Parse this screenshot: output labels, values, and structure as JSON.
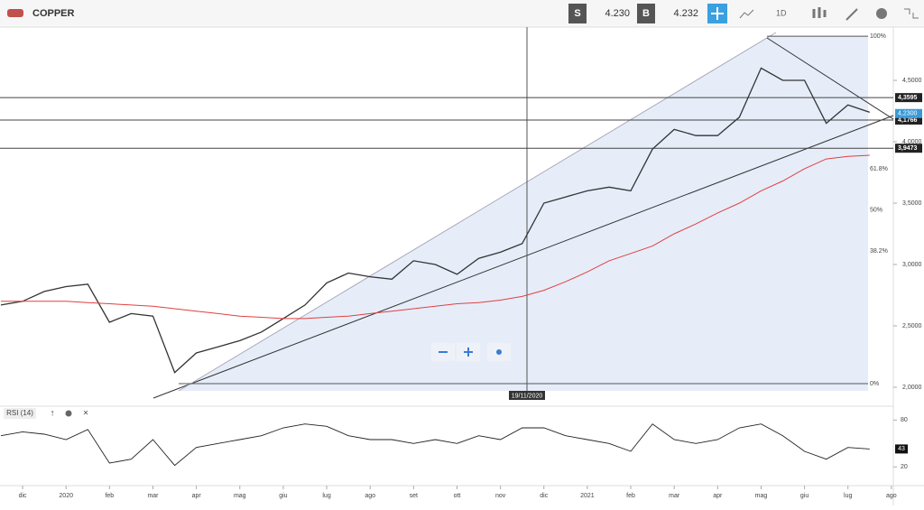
{
  "toolbar": {
    "symbol": "COPPER",
    "sell_label": "S",
    "sell": "4.230",
    "buy_label": "B",
    "buy": "4.232",
    "timeframe": "1D"
  },
  "chart_data": {
    "type": "line",
    "categories": [
      null,
      "dic",
      null,
      "2020",
      null,
      "feb",
      null,
      "mar",
      null,
      "apr",
      null,
      "mag",
      null,
      "giu",
      null,
      "lug",
      null,
      "ago",
      null,
      "set",
      null,
      "ott",
      null,
      "nov",
      null,
      "dic",
      null,
      "2021",
      null,
      "feb",
      null,
      "mar",
      null,
      "apr",
      null,
      "mag",
      null,
      "giu",
      null,
      "lug",
      null,
      "ago"
    ],
    "series": [
      {
        "name": "COPPER",
        "color": "#333333",
        "values": [
          2.67,
          2.7,
          2.78,
          2.82,
          2.84,
          2.53,
          2.6,
          2.58,
          2.12,
          2.28,
          2.33,
          2.38,
          2.45,
          2.56,
          2.67,
          2.85,
          2.93,
          2.9,
          2.88,
          3.03,
          3.0,
          2.92,
          3.05,
          3.1,
          3.17,
          3.5,
          3.55,
          3.6,
          3.63,
          3.6,
          3.94,
          4.1,
          4.05,
          4.05,
          4.2,
          4.6,
          4.5,
          4.5,
          4.15,
          4.3,
          4.24,
          null
        ]
      },
      {
        "name": "MA",
        "color": "#e0403f",
        "values": [
          2.7,
          2.7,
          2.7,
          2.7,
          2.69,
          2.68,
          2.67,
          2.66,
          2.64,
          2.62,
          2.6,
          2.58,
          2.57,
          2.56,
          2.56,
          2.57,
          2.58,
          2.6,
          2.62,
          2.64,
          2.66,
          2.68,
          2.69,
          2.71,
          2.74,
          2.79,
          2.86,
          2.94,
          3.03,
          3.09,
          3.15,
          3.25,
          3.33,
          3.42,
          3.5,
          3.6,
          3.68,
          3.78,
          3.86,
          3.88,
          3.89,
          null
        ]
      }
    ],
    "ylim": [
      1.912,
      4.934
    ],
    "yticks": [
      {
        "value": 2,
        "label": "2,0000"
      },
      {
        "value": 2.5,
        "label": "2,5000"
      },
      {
        "value": 3,
        "label": "3,0000"
      },
      {
        "value": 3.5,
        "label": "3,5000"
      },
      {
        "value": 4,
        "label": "4,0000"
      },
      {
        "value": 4.5,
        "label": "4,5000"
      }
    ],
    "hlines": [
      {
        "value": 4.3595,
        "label": "4,3595"
      },
      {
        "value": 4.1766,
        "label": "4,1766"
      },
      {
        "value": 3.9473,
        "label": "3,9473"
      }
    ],
    "last_price": {
      "value": 4.23,
      "label": "4,2300"
    },
    "fib": {
      "low": 2.03,
      "high": 4.86,
      "levels": [
        {
          "value": 100,
          "label": "100%"
        },
        {
          "value": 61.8,
          "label": "61.8%"
        },
        {
          "value": 50,
          "label": "50%"
        },
        {
          "value": 38.2,
          "label": "38.2%"
        },
        {
          "value": 0,
          "label": "0%"
        }
      ]
    },
    "crosshair": "19/11/2020",
    "rsi": {
      "title": "RSI (14)",
      "values": [
        60,
        65,
        62,
        55,
        68,
        25,
        30,
        55,
        22,
        45,
        50,
        55,
        60,
        70,
        75,
        72,
        60,
        55,
        55,
        50,
        55,
        50,
        60,
        55,
        70,
        70,
        60,
        55,
        50,
        40,
        75,
        55,
        50,
        55,
        70,
        75,
        60,
        40,
        30,
        45,
        43,
        null
      ],
      "last": 43,
      "ylim": [
        -12,
        92
      ],
      "yticks": [
        80,
        20
      ]
    }
  }
}
